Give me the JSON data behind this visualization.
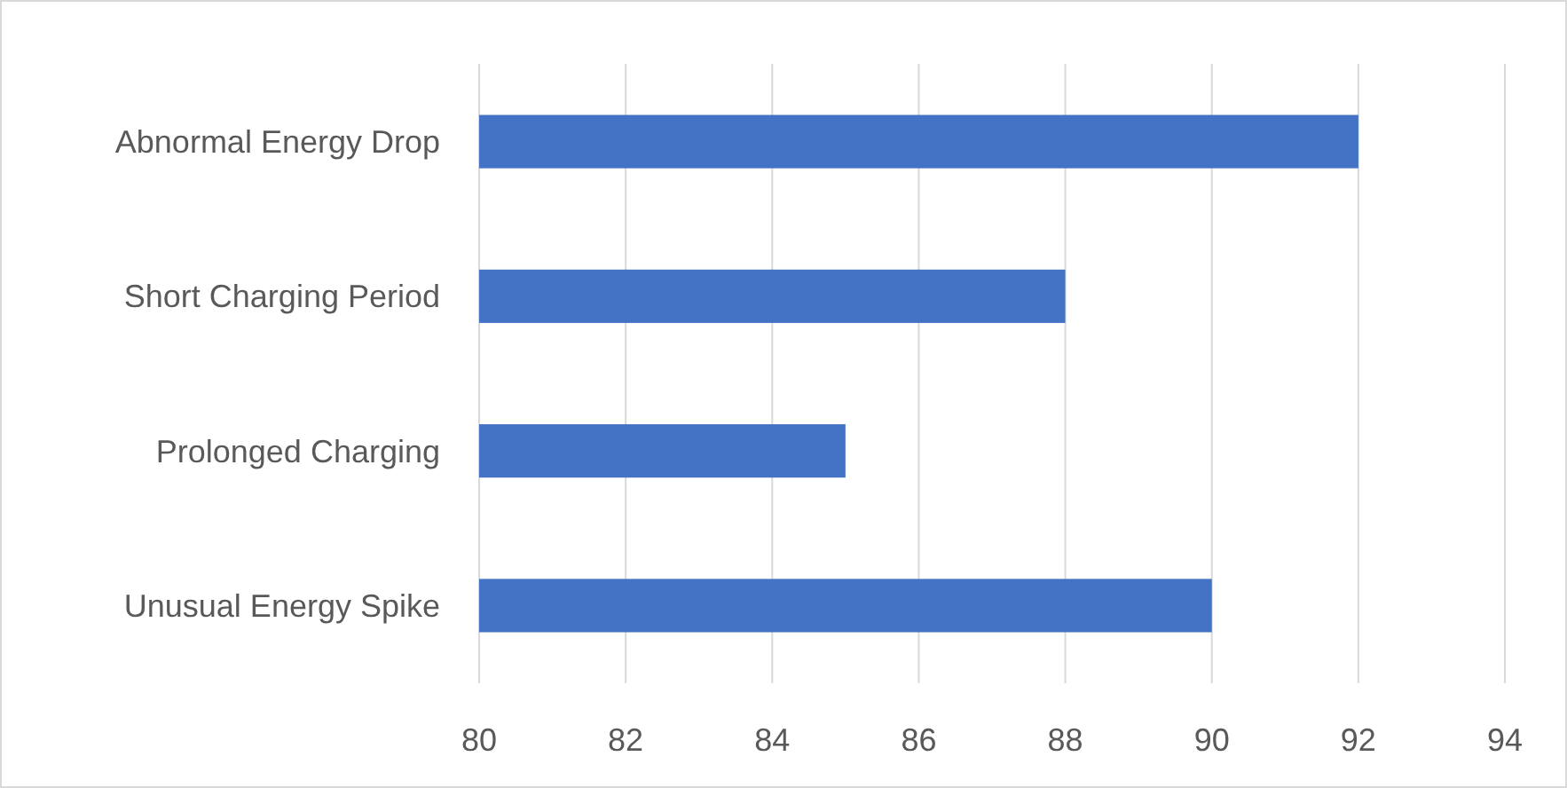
{
  "chart_data": {
    "type": "bar",
    "orientation": "horizontal",
    "categories": [
      "Abnormal Energy Drop",
      "Short Charging Period",
      "Prolonged Charging",
      "Unusual Energy Spike"
    ],
    "values": [
      92,
      88,
      85,
      90
    ],
    "color": "#4472c4",
    "xlim": [
      80,
      94
    ],
    "xticks": [
      80,
      82,
      84,
      86,
      88,
      90,
      92,
      94
    ],
    "grid": "x"
  }
}
